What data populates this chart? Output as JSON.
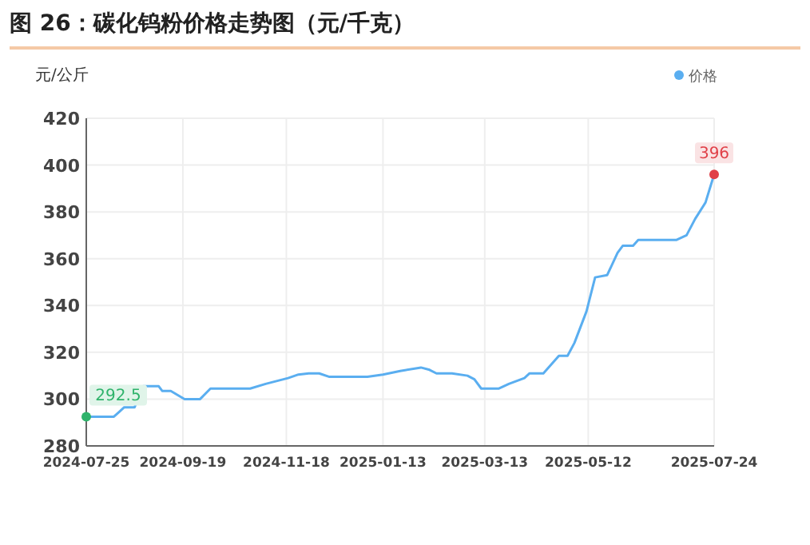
{
  "chart_data": {
    "type": "line",
    "title": "图 26：碳化钨粉价格走势图（元/千克）",
    "ylabel": "元/公斤",
    "x": [
      "2024-07-25",
      "2024-08-10",
      "2024-08-13",
      "2024-08-16",
      "2024-08-22",
      "2024-08-27",
      "2024-09-05",
      "2024-09-07",
      "2024-09-12",
      "2024-09-20",
      "2024-09-29",
      "2024-10-05",
      "2024-10-28",
      "2024-11-06",
      "2024-11-19",
      "2024-11-25",
      "2024-12-01",
      "2024-12-07",
      "2024-12-13",
      "2025-01-04",
      "2025-01-13",
      "2025-01-23",
      "2025-02-04",
      "2025-02-09",
      "2025-02-13",
      "2025-02-22",
      "2025-03-03",
      "2025-03-07",
      "2025-03-11",
      "2025-03-21",
      "2025-03-27",
      "2025-04-05",
      "2025-04-08",
      "2025-04-16",
      "2025-04-25",
      "2025-04-30",
      "2025-05-04",
      "2025-05-11",
      "2025-05-16",
      "2025-05-23",
      "2025-05-29",
      "2025-06-01",
      "2025-06-07",
      "2025-06-10",
      "2025-07-02",
      "2025-07-08",
      "2025-07-13",
      "2025-07-19",
      "2025-07-24"
    ],
    "series": [
      {
        "name": "价格",
        "color": "#5aaef0",
        "values": [
          292.5,
          292.5,
          294.5,
          296.5,
          296.5,
          305.5,
          305.5,
          303.5,
          303.5,
          300,
          300,
          304.5,
          304.5,
          306.5,
          309,
          310.5,
          311,
          311,
          309.5,
          309.5,
          310.5,
          312,
          313.5,
          312.5,
          311,
          311,
          310,
          308.5,
          304.5,
          304.5,
          306.5,
          309,
          311,
          311,
          318.5,
          318.5,
          324,
          337.5,
          352,
          353,
          362.5,
          365.5,
          365.5,
          368,
          368,
          370,
          377,
          384,
          396
        ]
      }
    ],
    "xlim": [
      "2024-07-25",
      "2025-07-24"
    ],
    "xticks": [
      {
        "value": "2024-07-25",
        "label": "2024-07-25"
      },
      {
        "value": "2024-09-19",
        "label": "2024-09-19"
      },
      {
        "value": "2024-11-18",
        "label": "2024-11-18"
      },
      {
        "value": "2025-01-13",
        "label": "2025-01-13"
      },
      {
        "value": "2025-03-13",
        "label": "2025-03-13"
      },
      {
        "value": "2025-05-12",
        "label": "2025-05-12"
      },
      {
        "value": "2025-07-24",
        "label": "2025-07-24"
      }
    ],
    "ylim": [
      280,
      420
    ],
    "yticks": [
      280,
      300,
      320,
      340,
      360,
      380,
      400,
      420
    ],
    "grid": true,
    "legend": "top right",
    "marker": "none",
    "line_style": "solid",
    "annotations": [
      {
        "text": "292.5",
        "x": "2024-07-25",
        "y": 292.5
      },
      {
        "text": "396",
        "x": "2025-07-24",
        "y": 396
      }
    ]
  }
}
